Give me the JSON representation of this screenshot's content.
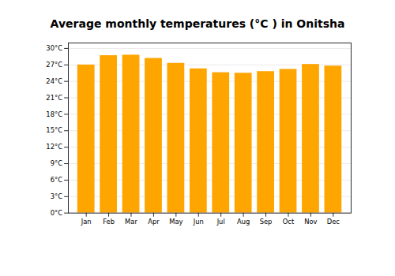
{
  "chart_data": {
    "type": "bar",
    "title": "Average monthly temperatures (°C ) in Onitsha",
    "categories": [
      "Jan",
      "Feb",
      "Mar",
      "Apr",
      "May",
      "Jun",
      "Jul",
      "Aug",
      "Sep",
      "Oct",
      "Nov",
      "Dec"
    ],
    "values": [
      27.0,
      28.7,
      28.8,
      28.2,
      27.3,
      26.3,
      25.6,
      25.5,
      25.8,
      26.2,
      27.1,
      26.8
    ],
    "color": "#FFA500",
    "ylim": [
      0,
      31
    ],
    "yticks": [
      {
        "value": 0,
        "label": "0°C"
      },
      {
        "value": 3,
        "label": "3°C"
      },
      {
        "value": 6,
        "label": "6°C"
      },
      {
        "value": 9,
        "label": "9°C"
      },
      {
        "value": 12,
        "label": "12°C"
      },
      {
        "value": 15,
        "label": "15°C"
      },
      {
        "value": 18,
        "label": "18°C"
      },
      {
        "value": 21,
        "label": "21°C"
      },
      {
        "value": 24,
        "label": "24°C"
      },
      {
        "value": 27,
        "label": "27°C"
      },
      {
        "value": 30,
        "label": "30°C"
      }
    ],
    "grid": true
  }
}
